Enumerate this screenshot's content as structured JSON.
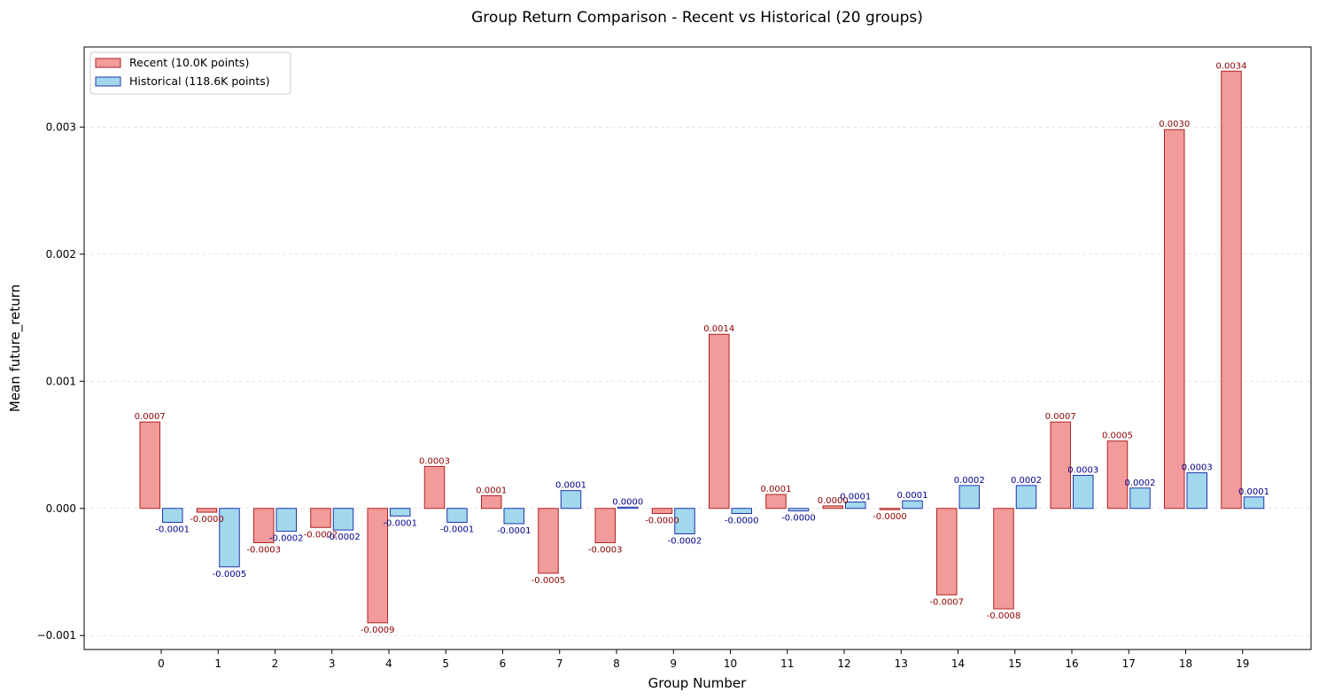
{
  "chart_data": {
    "type": "bar",
    "title": "Group Return Comparison - Recent vs Historical (20 groups)",
    "xlabel": "Group Number",
    "ylabel": "Mean future_return",
    "ylim": [
      -0.00111,
      0.00363
    ],
    "yticks": [
      -0.001,
      0.0,
      0.001,
      0.002,
      0.003
    ],
    "ytick_labels": [
      "−0.001",
      "0.000",
      "0.001",
      "0.002",
      "0.003"
    ],
    "grid": "y-dashed",
    "legend_position": "top-left",
    "categories": [
      "0",
      "1",
      "2",
      "3",
      "4",
      "5",
      "6",
      "7",
      "8",
      "9",
      "10",
      "11",
      "12",
      "13",
      "14",
      "15",
      "16",
      "17",
      "18",
      "19"
    ],
    "series": [
      {
        "name": "Recent (10.0K points)",
        "fill": "#f29b9b",
        "edge": "#b22222",
        "label_color": "#8b0000",
        "values": [
          0.00068,
          -3e-05,
          -0.00027,
          -0.00015,
          -0.0009,
          0.00033,
          0.0001,
          -0.00051,
          -0.00027,
          -4e-05,
          0.00137,
          0.00011,
          2e-05,
          -1e-05,
          -0.00068,
          -0.00079,
          0.00068,
          0.00053,
          0.00298,
          0.00344
        ],
        "labels": [
          "0.0007",
          "-0.0000",
          "-0.0003",
          "-0.0002",
          "-0.0009",
          "0.0003",
          "0.0001",
          "-0.0005",
          "-0.0003",
          "-0.0000",
          "0.0014",
          "0.0001",
          "0.0000",
          "-0.0000",
          "-0.0007",
          "-0.0008",
          "0.0007",
          "0.0005",
          "0.0030",
          "0.0034"
        ]
      },
      {
        "name": "Historical (118.6K points)",
        "fill": "#a1d8ee",
        "edge": "#2233aa",
        "label_color": "#00008b",
        "values": [
          -0.00011,
          -0.00046,
          -0.00018,
          -0.00017,
          -6e-05,
          -0.00011,
          -0.00012,
          0.00014,
          1e-05,
          -0.0002,
          -4e-05,
          -2e-05,
          5e-05,
          6e-05,
          0.00018,
          0.00018,
          0.00026,
          0.00016,
          0.00028,
          9e-05
        ],
        "labels": [
          "-0.0001",
          "-0.0005",
          "-0.0002",
          "-0.0002",
          "-0.0001",
          "-0.0001",
          "-0.0001",
          "0.0001",
          "0.0000",
          "-0.0002",
          "-0.0000",
          "-0.0000",
          "0.0001",
          "0.0001",
          "0.0002",
          "0.0002",
          "0.0003",
          "0.0002",
          "0.0003",
          "0.0001"
        ]
      }
    ]
  }
}
